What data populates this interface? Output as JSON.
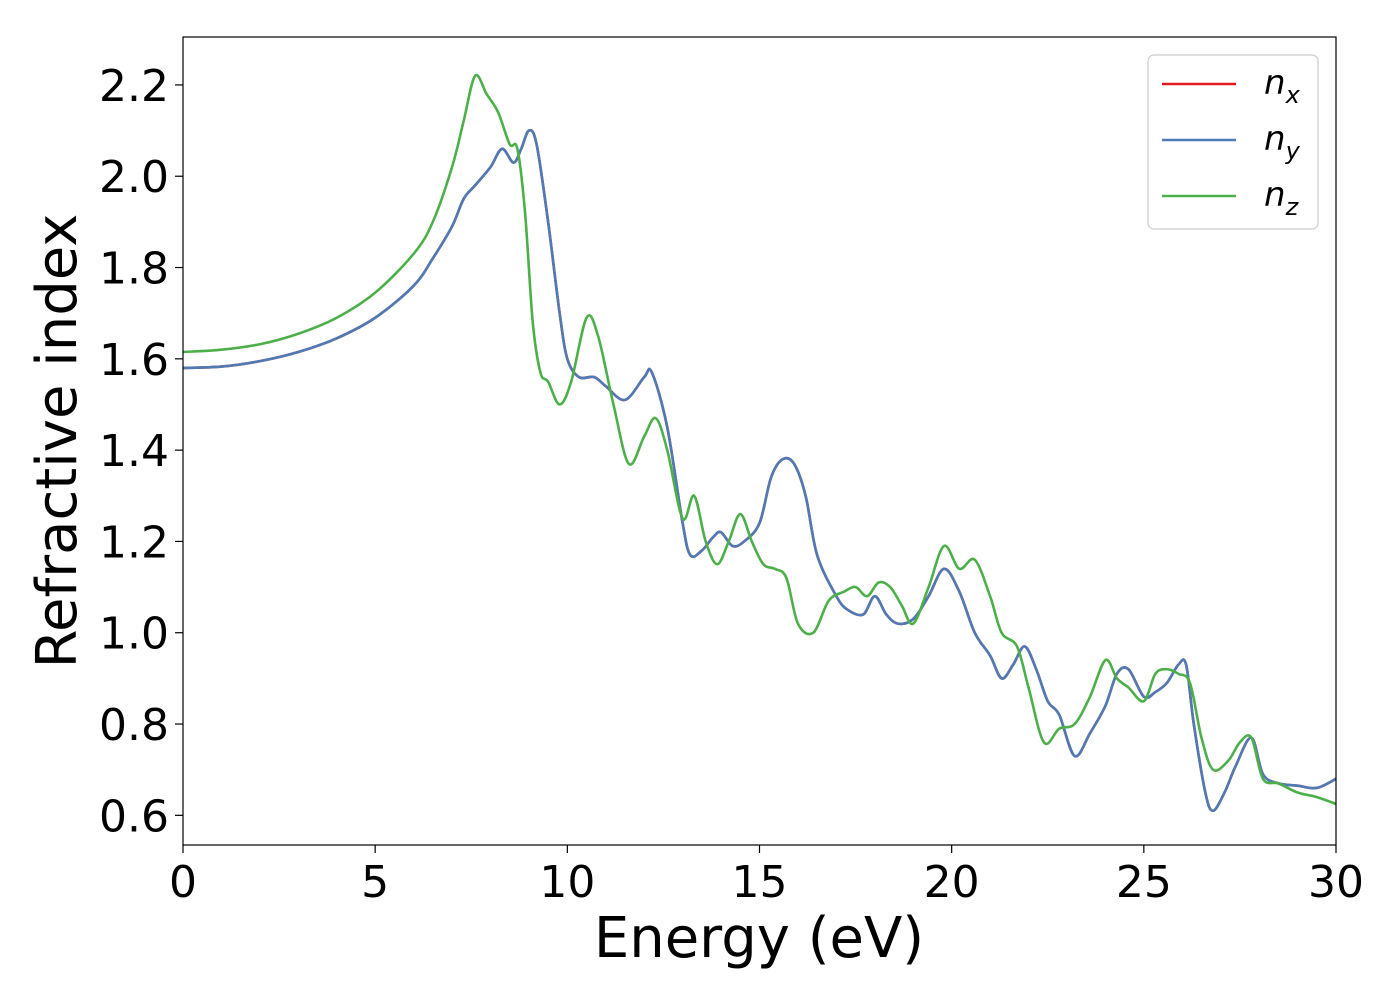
{
  "chart_data": {
    "type": "line",
    "xlabel": "Energy (eV)",
    "ylabel": "Refractive index",
    "xlim": [
      0,
      30
    ],
    "ylim": [
      0.535,
      2.305
    ],
    "xticks": [
      0,
      5,
      10,
      15,
      20,
      25,
      30
    ],
    "xtick_labels": [
      "0",
      "5",
      "10",
      "15",
      "20",
      "25",
      "30"
    ],
    "yticks": [
      0.6,
      0.8,
      1.0,
      1.2,
      1.4,
      1.6,
      1.8,
      2.0,
      2.2
    ],
    "ytick_labels": [
      "0.6",
      "0.8",
      "1.0",
      "1.2",
      "1.4",
      "1.6",
      "1.8",
      "2.0",
      "2.2"
    ],
    "grid": false,
    "legend_position": "top-right",
    "series": [
      {
        "name": "n",
        "subscript": "x",
        "color": "#e41a1c",
        "x": [
          0,
          1,
          2,
          3,
          4,
          5,
          6,
          6.5,
          7,
          7.3,
          7.6,
          8.0,
          8.3,
          8.6,
          8.8,
          9.0,
          9.2,
          9.5,
          9.8,
          10.0,
          10.3,
          10.7,
          11.0,
          11.5,
          12.0,
          12.2,
          12.6,
          13.0,
          13.2,
          13.5,
          13.8,
          14.0,
          14.3,
          14.6,
          15.0,
          15.3,
          15.6,
          15.9,
          16.2,
          16.5,
          17.0,
          17.3,
          17.7,
          18.0,
          18.3,
          18.6,
          19.0,
          19.4,
          19.8,
          20.2,
          20.6,
          21.0,
          21.3,
          21.6,
          21.9,
          22.2,
          22.5,
          22.8,
          23.2,
          23.6,
          24.0,
          24.3,
          24.6,
          25.0,
          25.3,
          25.6,
          25.9,
          26.1,
          26.3,
          26.6,
          26.8,
          27.1,
          27.4,
          27.8,
          28.1,
          28.5,
          29.0,
          29.5,
          30.0
        ],
        "y": [
          1.58,
          1.583,
          1.595,
          1.615,
          1.645,
          1.69,
          1.76,
          1.82,
          1.89,
          1.95,
          1.98,
          2.02,
          2.06,
          2.03,
          2.06,
          2.1,
          2.07,
          1.9,
          1.7,
          1.6,
          1.56,
          1.56,
          1.54,
          1.51,
          1.56,
          1.57,
          1.45,
          1.24,
          1.17,
          1.18,
          1.21,
          1.22,
          1.19,
          1.2,
          1.24,
          1.34,
          1.38,
          1.37,
          1.3,
          1.17,
          1.08,
          1.05,
          1.04,
          1.08,
          1.04,
          1.02,
          1.03,
          1.08,
          1.14,
          1.09,
          1.0,
          0.95,
          0.9,
          0.93,
          0.97,
          0.92,
          0.85,
          0.82,
          0.73,
          0.78,
          0.84,
          0.91,
          0.92,
          0.86,
          0.87,
          0.89,
          0.93,
          0.93,
          0.8,
          0.65,
          0.61,
          0.65,
          0.71,
          0.77,
          0.69,
          0.67,
          0.665,
          0.66,
          0.68
        ]
      },
      {
        "name": "n",
        "subscript": "y",
        "color": "#4e7bb5",
        "x": [
          0,
          1,
          2,
          3,
          4,
          5,
          6,
          6.5,
          7,
          7.3,
          7.6,
          8.0,
          8.3,
          8.6,
          8.8,
          9.0,
          9.2,
          9.5,
          9.8,
          10.0,
          10.3,
          10.7,
          11.0,
          11.5,
          12.0,
          12.2,
          12.6,
          13.0,
          13.2,
          13.5,
          13.8,
          14.0,
          14.3,
          14.6,
          15.0,
          15.3,
          15.6,
          15.9,
          16.2,
          16.5,
          17.0,
          17.3,
          17.7,
          18.0,
          18.3,
          18.6,
          19.0,
          19.4,
          19.8,
          20.2,
          20.6,
          21.0,
          21.3,
          21.6,
          21.9,
          22.2,
          22.5,
          22.8,
          23.2,
          23.6,
          24.0,
          24.3,
          24.6,
          25.0,
          25.3,
          25.6,
          25.9,
          26.1,
          26.3,
          26.6,
          26.8,
          27.1,
          27.4,
          27.8,
          28.1,
          28.5,
          29.0,
          29.5,
          30.0
        ],
        "y": [
          1.58,
          1.583,
          1.595,
          1.615,
          1.645,
          1.69,
          1.76,
          1.82,
          1.89,
          1.95,
          1.98,
          2.02,
          2.06,
          2.03,
          2.06,
          2.1,
          2.07,
          1.9,
          1.7,
          1.6,
          1.56,
          1.56,
          1.54,
          1.51,
          1.56,
          1.57,
          1.45,
          1.24,
          1.17,
          1.18,
          1.21,
          1.22,
          1.19,
          1.2,
          1.24,
          1.34,
          1.38,
          1.37,
          1.3,
          1.17,
          1.08,
          1.05,
          1.04,
          1.08,
          1.04,
          1.02,
          1.03,
          1.08,
          1.14,
          1.09,
          1.0,
          0.95,
          0.9,
          0.93,
          0.97,
          0.92,
          0.85,
          0.82,
          0.73,
          0.78,
          0.84,
          0.91,
          0.92,
          0.86,
          0.87,
          0.89,
          0.93,
          0.93,
          0.8,
          0.65,
          0.61,
          0.65,
          0.71,
          0.77,
          0.69,
          0.67,
          0.665,
          0.66,
          0.68
        ]
      },
      {
        "name": "n",
        "subscript": "z",
        "color": "#4daf4a",
        "x": [
          0,
          1,
          2,
          3,
          4,
          5,
          6,
          6.5,
          7,
          7.3,
          7.6,
          7.9,
          8.2,
          8.5,
          8.7,
          8.9,
          9.1,
          9.3,
          9.5,
          9.8,
          10.1,
          10.5,
          10.8,
          11.2,
          11.6,
          12.0,
          12.3,
          12.6,
          13.0,
          13.3,
          13.6,
          13.9,
          14.2,
          14.5,
          14.8,
          15.1,
          15.4,
          15.7,
          16.0,
          16.4,
          16.8,
          17.2,
          17.5,
          17.8,
          18.1,
          18.4,
          18.7,
          19.0,
          19.4,
          19.8,
          20.2,
          20.6,
          21.0,
          21.3,
          21.7,
          22.0,
          22.4,
          22.8,
          23.2,
          23.6,
          24.0,
          24.3,
          24.6,
          25.0,
          25.3,
          25.6,
          25.9,
          26.2,
          26.5,
          26.8,
          27.2,
          27.5,
          27.8,
          28.1,
          28.5,
          29.0,
          29.5,
          30.0
        ],
        "y": [
          1.615,
          1.62,
          1.632,
          1.655,
          1.69,
          1.745,
          1.83,
          1.9,
          2.02,
          2.12,
          2.22,
          2.18,
          2.14,
          2.07,
          2.06,
          1.92,
          1.68,
          1.57,
          1.55,
          1.5,
          1.55,
          1.69,
          1.65,
          1.5,
          1.37,
          1.43,
          1.47,
          1.4,
          1.25,
          1.3,
          1.2,
          1.15,
          1.2,
          1.26,
          1.2,
          1.15,
          1.14,
          1.12,
          1.02,
          1.0,
          1.07,
          1.09,
          1.1,
          1.08,
          1.11,
          1.1,
          1.06,
          1.02,
          1.1,
          1.19,
          1.14,
          1.16,
          1.08,
          1.0,
          0.97,
          0.88,
          0.76,
          0.79,
          0.8,
          0.86,
          0.94,
          0.9,
          0.88,
          0.85,
          0.91,
          0.92,
          0.91,
          0.89,
          0.77,
          0.7,
          0.72,
          0.76,
          0.77,
          0.68,
          0.67,
          0.65,
          0.64,
          0.625
        ]
      }
    ]
  }
}
